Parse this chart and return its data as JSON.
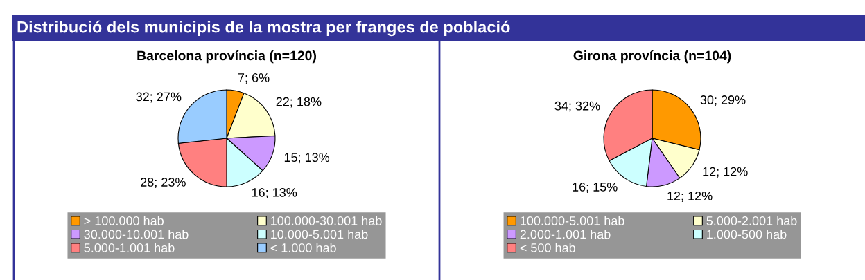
{
  "chart_data": [
    {
      "type": "other",
      "title": "Distribució dels municipis de la mostra per franges de població",
      "color": "#333399"
    },
    {
      "type": "pie",
      "title": "Barcelona província (n=120)",
      "categories": [
        "> 100.000 hab",
        "100.000-30.001 hab",
        "30.000-10.001 hab",
        "10.000-5.001 hab",
        "5.000-1.001 hab",
        "< 1.000 hab"
      ],
      "values": [
        7,
        22,
        15,
        16,
        28,
        32
      ],
      "value_labels": [
        "7; 6%",
        "22; 18%",
        "15; 13%",
        "16; 13%",
        "28; 23%",
        "32; 27%"
      ],
      "colors": [
        "#ff9900",
        "#ffffcc",
        "#cc99ff",
        "#ccffff",
        "#ff8080",
        "#99ccff"
      ],
      "legend": "bottom"
    },
    {
      "type": "pie",
      "title": "Girona província (n=104)",
      "categories": [
        "100.000-5.001 hab",
        "5.000-2.001 hab",
        "2.000-1.001 hab",
        "1.000-500 hab",
        "< 500 hab"
      ],
      "values": [
        30,
        12,
        12,
        16,
        34
      ],
      "value_labels": [
        "30; 29%",
        "12; 12%",
        "12; 12%",
        "16; 15%",
        "34; 32%"
      ],
      "colors": [
        "#ff9900",
        "#ffffcc",
        "#cc99ff",
        "#ccffff",
        "#ff8080"
      ],
      "legend": "bottom"
    }
  ]
}
